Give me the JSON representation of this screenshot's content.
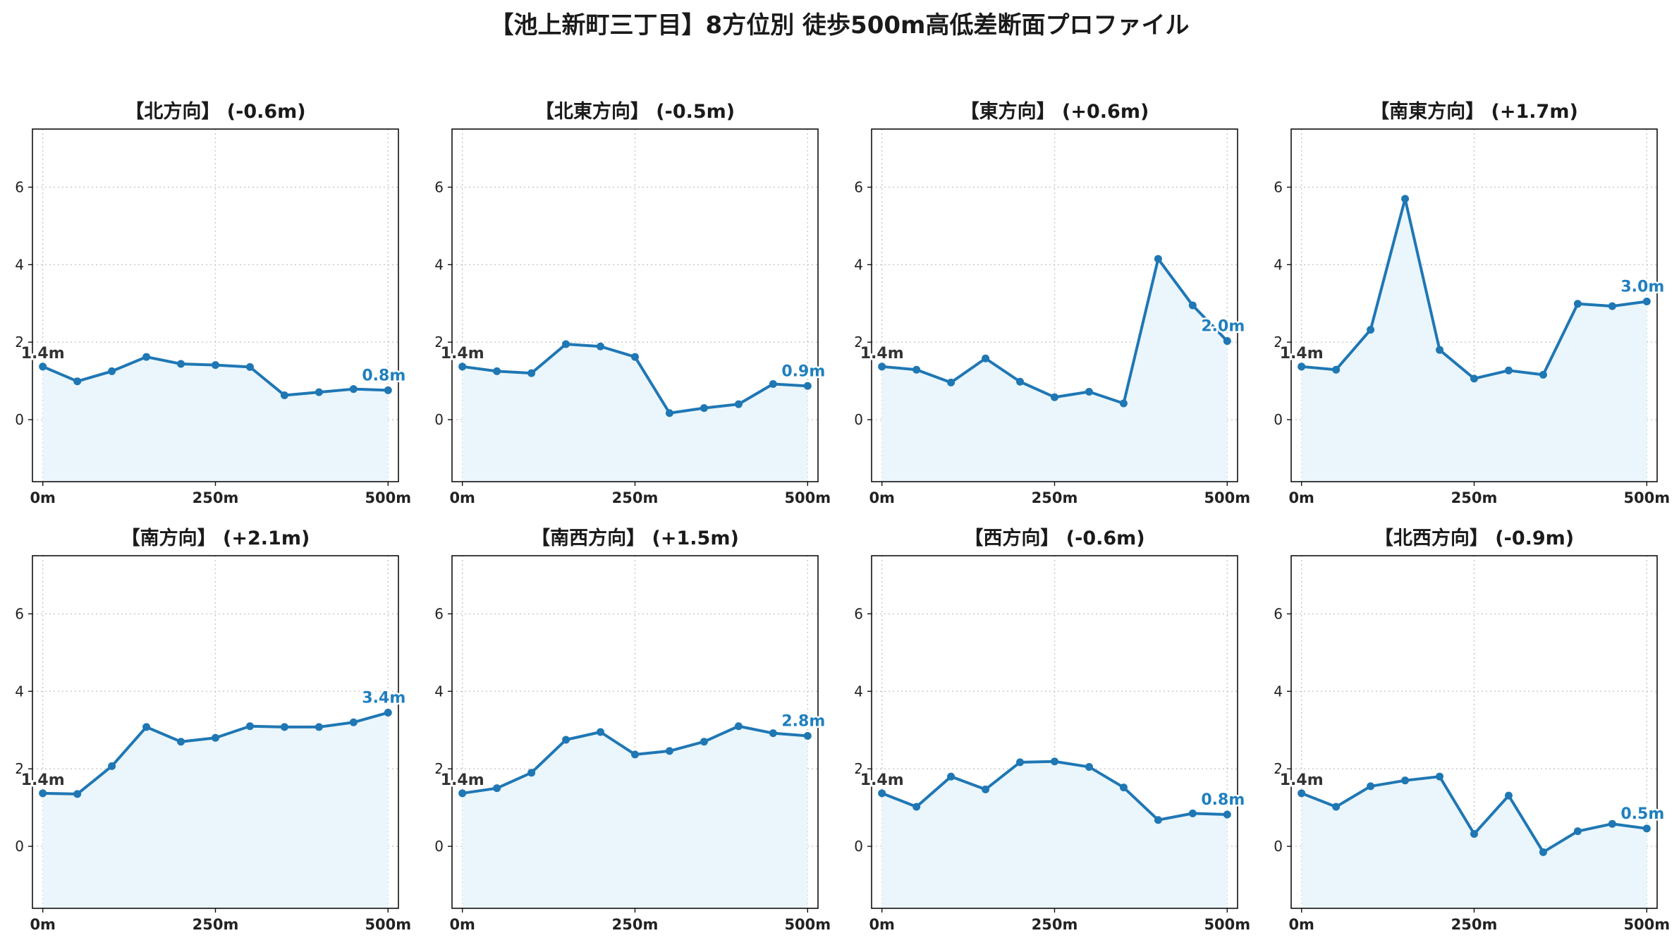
{
  "title": "【池上新町三丁目】8方位別 徒歩500m高低差断面プロファイル",
  "chart_data": {
    "type": "line",
    "layout": "grid 2x4",
    "x": [
      0,
      50,
      100,
      150,
      200,
      250,
      300,
      350,
      400,
      450,
      500
    ],
    "x_ticks": [
      "0m",
      "250m",
      "500m"
    ],
    "y_ticks": [
      "0",
      "2",
      "4",
      "6"
    ],
    "xlim": [
      -15,
      515
    ],
    "ylim": [
      -1.6,
      7.5
    ],
    "grid": true,
    "line_color": "#1f77b4",
    "fill_color": "#eaf6fc",
    "panels": [
      {
        "title": "【北方向】 (-0.6m)",
        "start_label": "1.4m",
        "end_label": "0.8m",
        "values": [
          1.37,
          0.99,
          1.25,
          1.62,
          1.44,
          1.41,
          1.36,
          0.63,
          0.71,
          0.79,
          0.76
        ]
      },
      {
        "title": "【北東方向】 (-0.5m)",
        "start_label": "1.4m",
        "end_label": "0.9m",
        "values": [
          1.37,
          1.25,
          1.2,
          1.95,
          1.89,
          1.62,
          0.17,
          0.3,
          0.4,
          0.92,
          0.87
        ]
      },
      {
        "title": "【東方向】 (+0.6m)",
        "start_label": "1.4m",
        "end_label": "2.0m",
        "values": [
          1.37,
          1.29,
          0.96,
          1.58,
          0.98,
          0.58,
          0.72,
          0.42,
          4.15,
          2.95,
          2.03
        ]
      },
      {
        "title": "【南東方向】 (+1.7m)",
        "start_label": "1.4m",
        "end_label": "3.0m",
        "values": [
          1.37,
          1.29,
          2.32,
          5.7,
          1.8,
          1.06,
          1.27,
          1.16,
          2.99,
          2.93,
          3.05
        ]
      },
      {
        "title": "【南方向】 (+2.1m)",
        "start_label": "1.4m",
        "end_label": "3.4m",
        "values": [
          1.37,
          1.35,
          2.07,
          3.08,
          2.7,
          2.8,
          3.1,
          3.08,
          3.08,
          3.2,
          3.45
        ]
      },
      {
        "title": "【南西方向】 (+1.5m)",
        "start_label": "1.4m",
        "end_label": "2.8m",
        "values": [
          1.37,
          1.5,
          1.9,
          2.75,
          2.95,
          2.37,
          2.46,
          2.7,
          3.1,
          2.92,
          2.85
        ]
      },
      {
        "title": "【西方向】 (-0.6m)",
        "start_label": "1.4m",
        "end_label": "0.8m",
        "values": [
          1.37,
          1.02,
          1.8,
          1.47,
          2.17,
          2.19,
          2.05,
          1.52,
          0.68,
          0.85,
          0.82
        ]
      },
      {
        "title": "【北西方向】 (-0.9m)",
        "start_label": "1.4m",
        "end_label": "0.5m",
        "values": [
          1.37,
          1.02,
          1.55,
          1.7,
          1.8,
          0.32,
          1.31,
          -0.15,
          0.39,
          0.58,
          0.46
        ]
      }
    ]
  }
}
